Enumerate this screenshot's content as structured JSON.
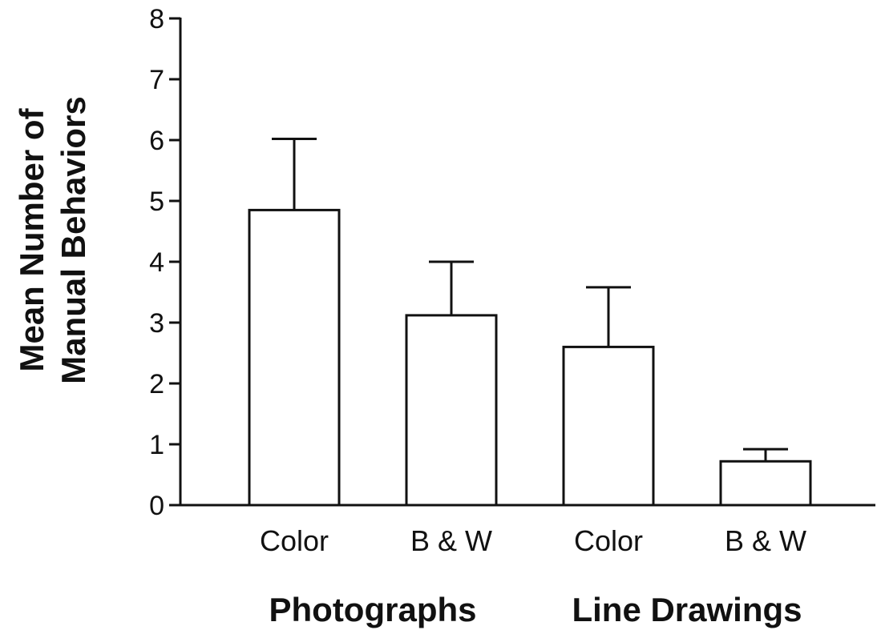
{
  "chart_data": {
    "type": "bar",
    "title": "",
    "xlabel": "",
    "ylabel": [
      "Mean Number of",
      "Manual Behaviors"
    ],
    "ylim": [
      0,
      8
    ],
    "yticks": [
      "0",
      "1",
      "2",
      "3",
      "4",
      "5",
      "6",
      "7",
      "8"
    ],
    "categories": [
      "Color",
      "B & W",
      "Color",
      "B & W"
    ],
    "groups": [
      "Photographs",
      "Line Drawings"
    ],
    "values": [
      4.85,
      3.12,
      2.6,
      0.72
    ],
    "error_upper": [
      6.02,
      4.0,
      3.58,
      0.92
    ],
    "bar_fill": "#ffffff",
    "bar_stroke": "#111111",
    "grid": false,
    "legend": "none"
  }
}
